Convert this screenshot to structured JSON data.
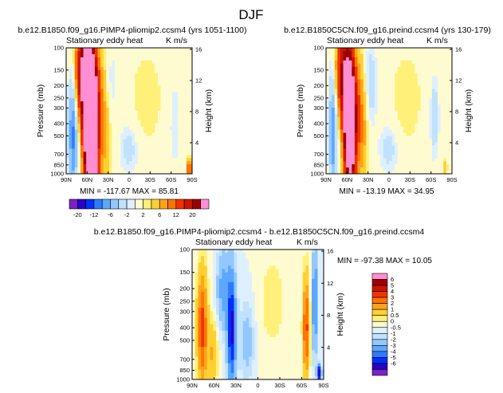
{
  "figure_title": "DJF",
  "colors": {
    "palette_main": [
      "#7a22c9",
      "#2a00c8",
      "#0030ff",
      "#2f7bff",
      "#5ea7ff",
      "#92c8ff",
      "#c0e2ff",
      "#def0ff",
      "#fffbd0",
      "#fff07a",
      "#ffd030",
      "#ffa41a",
      "#ff7400",
      "#f03200",
      "#cc1400",
      "#9e0000",
      "#ff8fd2"
    ],
    "palette_diff": [
      "#7a22c9",
      "#2a00c8",
      "#0030ff",
      "#2f7bff",
      "#5ea7ff",
      "#92c8ff",
      "#c0e2ff",
      "#def0ff",
      "#fffbd0",
      "#fff07a",
      "#ffd030",
      "#ffa41a",
      "#ff7400",
      "#f03200",
      "#cc1400",
      "#9e0000",
      "#ff8fd2"
    ]
  },
  "panels": [
    {
      "name": "model-1",
      "title": "b.e12.B1850.f09_g16.PIMP4-pliomip2.ccsm4 (yrs 1051-1100)",
      "subtitle_left": "Stationary eddy heat",
      "subtitle_right": "K m/s",
      "stats": "MIN = -117.67    MAX =  85.81"
    },
    {
      "name": "model-2",
      "title": "b.e12.B1850C5CN.f09_g16.preind.ccsm4 (yrs 130-179)",
      "subtitle_left": "Stationary eddy heat",
      "subtitle_right": "K m/s",
      "stats": "MIN = -13.19    MAX =  34.95"
    },
    {
      "name": "difference",
      "title": "b.e12.B1850.f09_g16.PIMP4-pliomip2.ccsm4 - b.e12.B1850C5CN.f09_g16.preind.ccsm4",
      "subtitle_left": "Stationary eddy heat",
      "subtitle_right": "K m/s",
      "stats": "MIN = -97.38    MAX =  10.05"
    }
  ],
  "chart_data": [
    {
      "type": "heatmap",
      "title": "b.e12.B1850.f09_g16.PIMP4-pliomip2.ccsm4 (yrs 1051-1100)",
      "variable": "Stationary eddy heat",
      "units": "K m/s",
      "xlabel": "",
      "ylabel": "Pressure (mb)",
      "ylabel_right": "Height (km)",
      "x_ticks": [
        "90N",
        "60N",
        "30N",
        "0",
        "30S",
        "60S",
        "90S"
      ],
      "x_range": [
        90,
        -90
      ],
      "y_ticks": [
        1000,
        850,
        700,
        500,
        400,
        300,
        250,
        200,
        150,
        100
      ],
      "y_range": [
        1000,
        100
      ],
      "y_right_ticks": [
        4,
        8,
        12,
        16
      ],
      "min": -117.67,
      "max": 85.81,
      "contour_levels": [
        -20,
        -16,
        -12,
        -8,
        -6,
        -4,
        -2,
        -1,
        1,
        2,
        4,
        6,
        8,
        12,
        16,
        20
      ],
      "colorbar_labels": [
        "-20",
        "-12",
        "-6",
        "-2",
        "2",
        "6",
        "12",
        "20"
      ]
    },
    {
      "type": "heatmap",
      "title": "b.e12.B1850C5CN.f09_g16.preind.ccsm4 (yrs 130-179)",
      "variable": "Stationary eddy heat",
      "units": "K m/s",
      "xlabel": "",
      "ylabel": "Pressure (mb)",
      "ylabel_right": "Height (km)",
      "x_ticks": [
        "90N",
        "60N",
        "30N",
        "0",
        "30S",
        "60S",
        "90S"
      ],
      "x_range": [
        90,
        -90
      ],
      "y_ticks": [
        1000,
        850,
        700,
        500,
        400,
        300,
        250,
        200,
        150,
        100
      ],
      "y_range": [
        1000,
        100
      ],
      "y_right_ticks": [
        4,
        8,
        12,
        16
      ],
      "min": -13.19,
      "max": 34.95,
      "contour_levels": [
        -20,
        -16,
        -12,
        -8,
        -6,
        -4,
        -2,
        -1,
        1,
        2,
        4,
        6,
        8,
        12,
        16,
        20
      ],
      "colorbar_labels": [
        "-20",
        "-12",
        "-6",
        "-2",
        "2",
        "6",
        "12",
        "20"
      ]
    },
    {
      "type": "heatmap",
      "title": "b.e12.B1850.f09_g16.PIMP4-pliomip2.ccsm4 - b.e12.B1850C5CN.f09_g16.preind.ccsm4",
      "variable": "Stationary eddy heat",
      "units": "K m/s",
      "xlabel": "",
      "ylabel": "Pressure (mb)",
      "ylabel_right": "Height (km)",
      "x_ticks": [
        "90N",
        "60N",
        "30N",
        "0",
        "30S",
        "60S",
        "90S"
      ],
      "x_range": [
        90,
        -90
      ],
      "y_ticks": [
        1000,
        850,
        700,
        500,
        400,
        300,
        250,
        200,
        150,
        100
      ],
      "y_range": [
        1000,
        100
      ],
      "y_right_ticks": [
        4,
        8,
        12,
        16
      ],
      "min": -97.38,
      "max": 10.05,
      "contour_levels": [
        -6,
        -5,
        -4,
        -3,
        -2,
        -1,
        -0.5,
        0,
        0.5,
        1,
        2,
        3,
        4,
        5,
        6
      ],
      "colorbar_labels": [
        "6",
        "5",
        "4",
        "3",
        "2",
        "1",
        "0.5",
        "0",
        "-0.5",
        "-1",
        "-2",
        "-3",
        "-4",
        "-5",
        "-6"
      ]
    }
  ]
}
